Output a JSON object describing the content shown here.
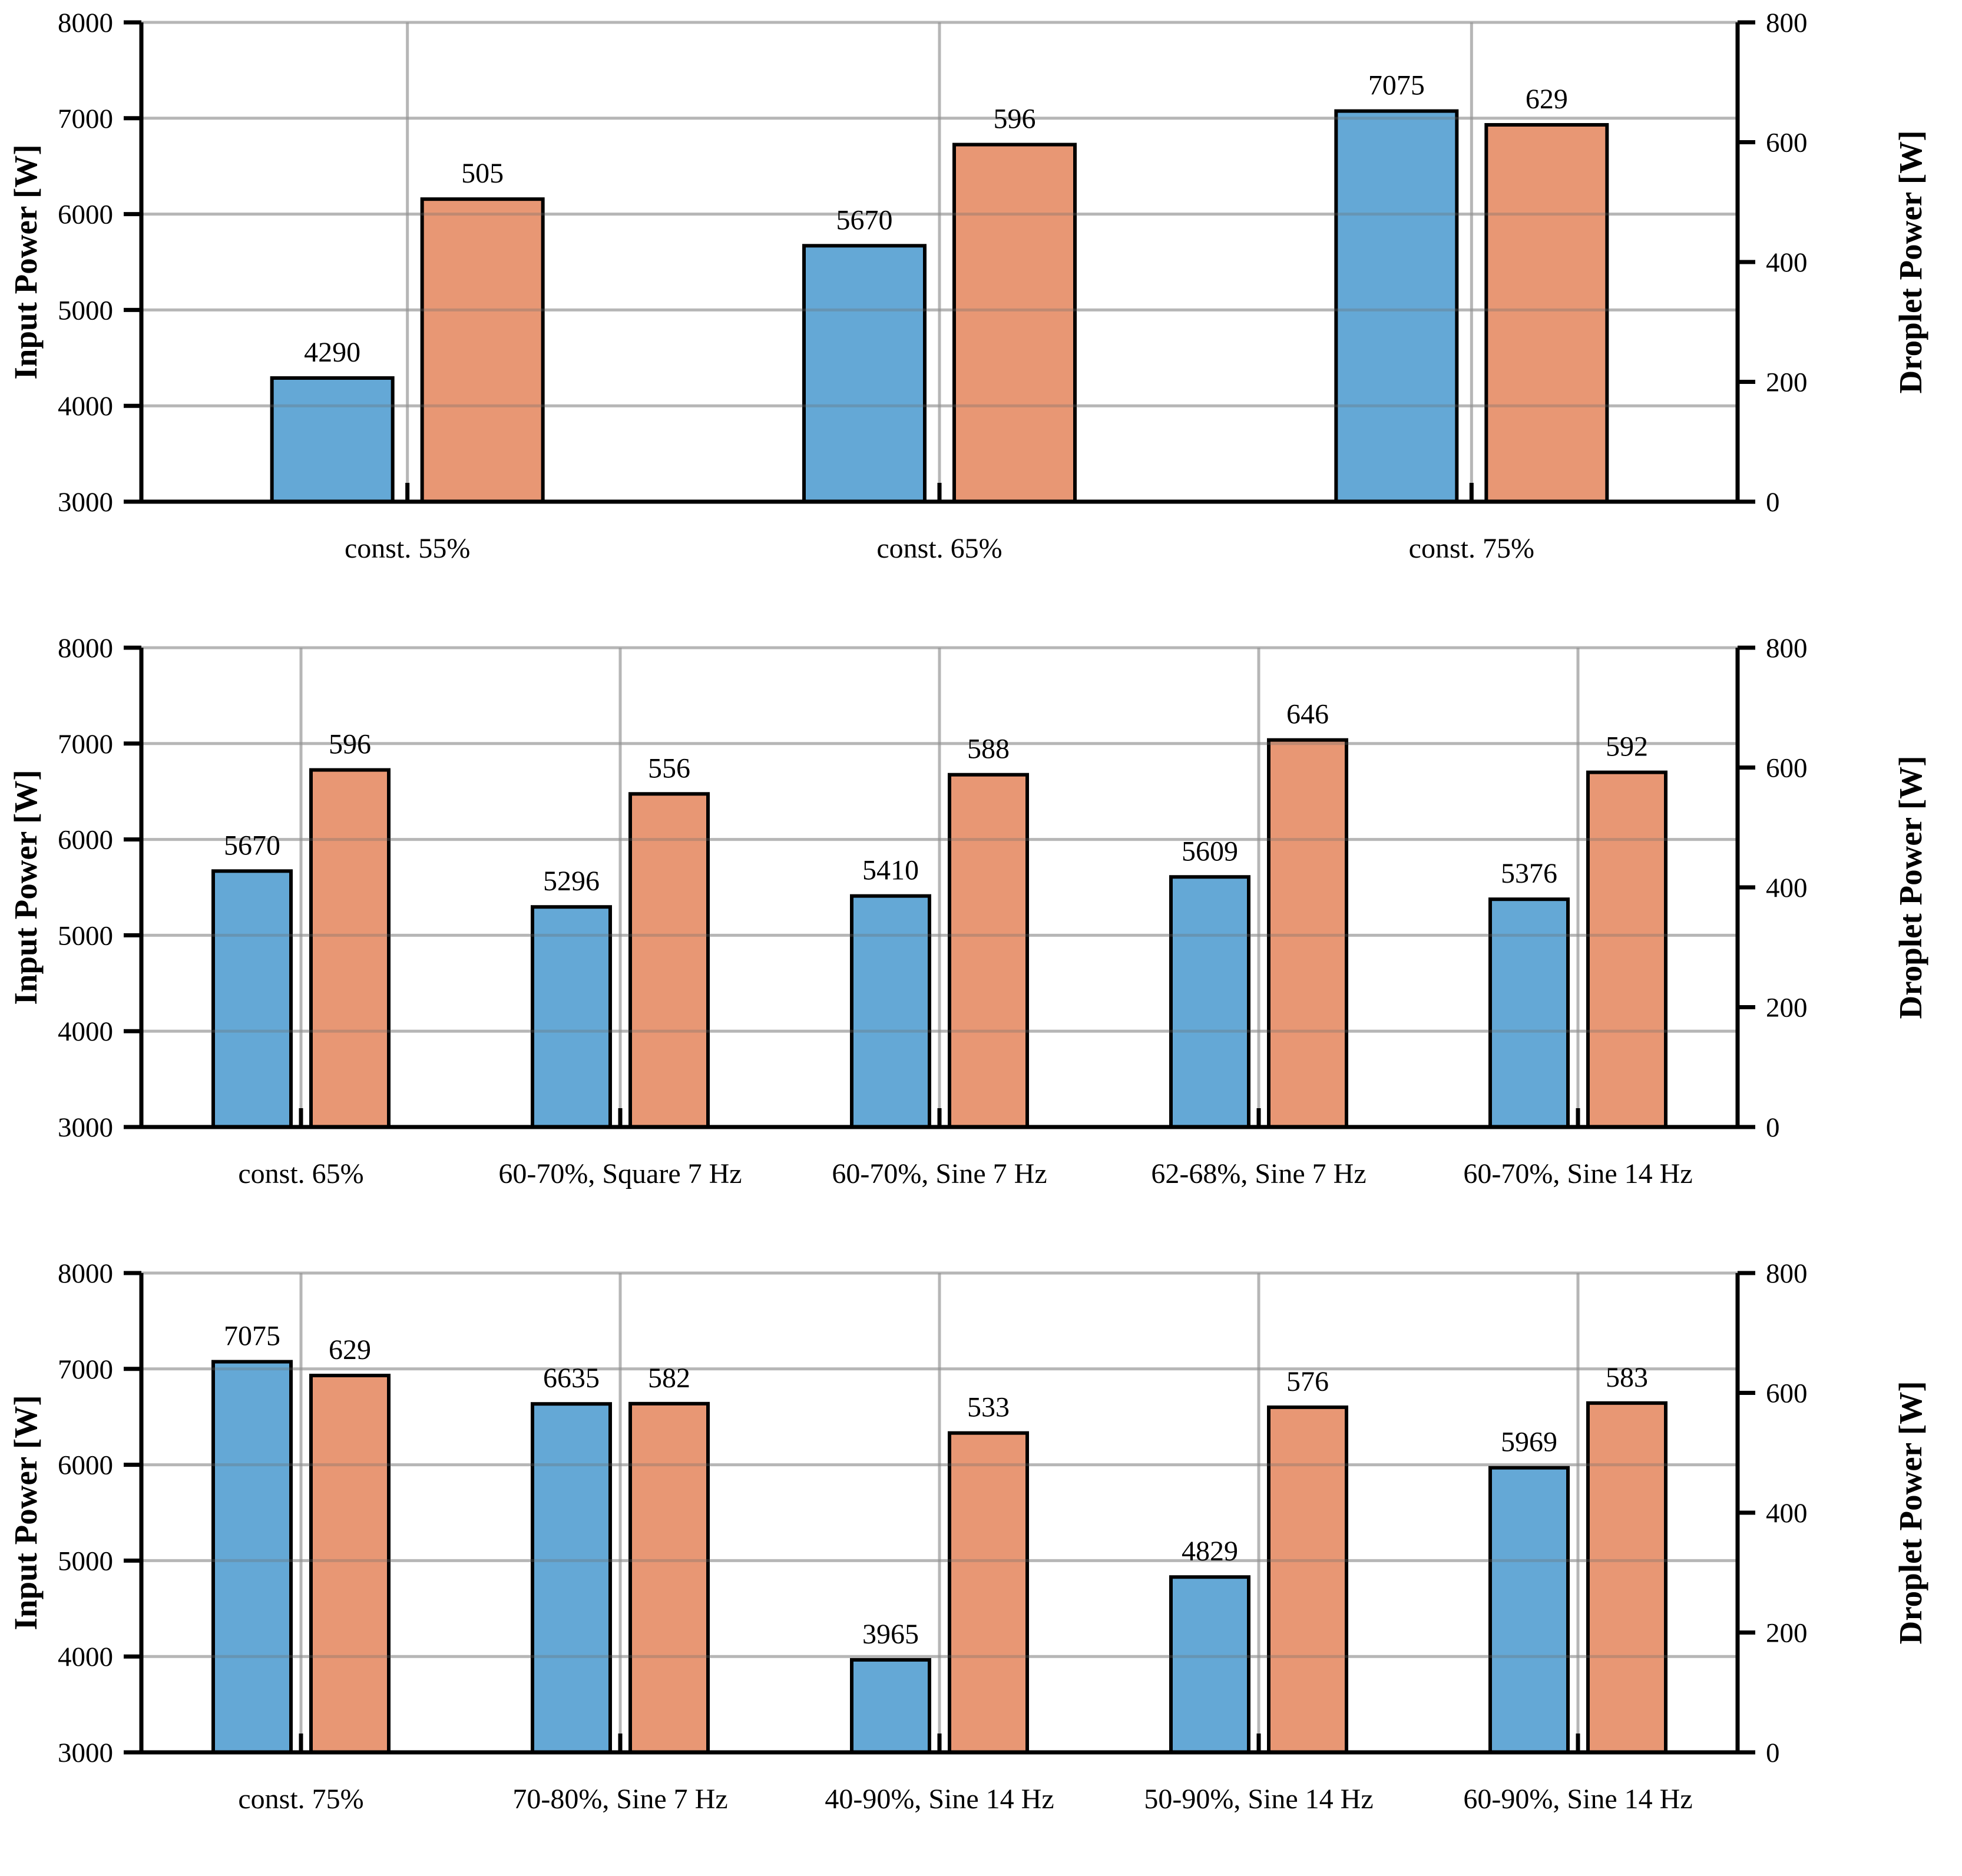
{
  "figure": {
    "background": "#ffffff",
    "num_panels": 3
  },
  "colors": {
    "bar_input_power": "#64a8d6",
    "bar_droplet_power": "#e89774",
    "bar_edge": "#000000",
    "axis_label_input": "#1f77b4",
    "axis_label_droplet": "#d7612f",
    "grid": "#d9d9d9",
    "grid_overlay": "rgba(110,110,110,0.32)",
    "spine": "#000000",
    "tick_text": "#000000"
  },
  "chart_data": [
    {
      "type": "bar",
      "title": "",
      "categories": [
        "const. 55%",
        "const. 65%",
        "const. 75%"
      ],
      "series": [
        {
          "name": "Input Power",
          "axis": "left",
          "color_key": "bar_input_power",
          "values": [
            4290,
            5670,
            7075
          ]
        },
        {
          "name": "Droplet Power",
          "axis": "right",
          "color_key": "bar_droplet_power",
          "values": [
            505,
            596,
            629
          ]
        }
      ],
      "left_axis": {
        "label": "Input Power [W]",
        "min": 3000,
        "max": 8000,
        "ticks": [
          3000,
          4000,
          5000,
          6000,
          7000,
          8000
        ]
      },
      "right_axis": {
        "label": "Droplet Power [W]",
        "min": 0,
        "max": 800,
        "ticks": [
          0,
          200,
          400,
          600,
          800
        ]
      },
      "grid": true,
      "legend_position": "none",
      "bar_value_labels": true
    },
    {
      "type": "bar",
      "title": "",
      "categories": [
        "const. 65%",
        "60-70%, Square 7 Hz",
        "60-70%, Sine 7 Hz",
        "62-68%, Sine 7 Hz",
        "60-70%, Sine 14 Hz"
      ],
      "series": [
        {
          "name": "Input Power",
          "axis": "left",
          "color_key": "bar_input_power",
          "values": [
            5670,
            5296,
            5410,
            5609,
            5376
          ]
        },
        {
          "name": "Droplet Power",
          "axis": "right",
          "color_key": "bar_droplet_power",
          "values": [
            596,
            556,
            588,
            646,
            592
          ]
        }
      ],
      "left_axis": {
        "label": "Input Power [W]",
        "min": 3000,
        "max": 8000,
        "ticks": [
          3000,
          4000,
          5000,
          6000,
          7000,
          8000
        ]
      },
      "right_axis": {
        "label": "Droplet Power [W]",
        "min": 0,
        "max": 800,
        "ticks": [
          0,
          200,
          400,
          600,
          800
        ]
      },
      "grid": true,
      "legend_position": "none",
      "bar_value_labels": true
    },
    {
      "type": "bar",
      "title": "",
      "categories": [
        "const. 75%",
        "70-80%, Sine 7 Hz",
        "40-90%, Sine 14 Hz",
        "50-90%, Sine 14 Hz",
        "60-90%, Sine 14 Hz"
      ],
      "series": [
        {
          "name": "Input Power",
          "axis": "left",
          "color_key": "bar_input_power",
          "values": [
            7075,
            6635,
            3965,
            4829,
            5969
          ]
        },
        {
          "name": "Droplet Power",
          "axis": "right",
          "color_key": "bar_droplet_power",
          "values": [
            629,
            582,
            533,
            576,
            583
          ]
        }
      ],
      "left_axis": {
        "label": "Input Power [W]",
        "min": 3000,
        "max": 8000,
        "ticks": [
          3000,
          4000,
          5000,
          6000,
          7000,
          8000
        ]
      },
      "right_axis": {
        "label": "Droplet Power [W]",
        "min": 0,
        "max": 800,
        "ticks": [
          0,
          200,
          400,
          600,
          800
        ]
      },
      "grid": true,
      "legend_position": "none",
      "bar_value_labels": true
    }
  ]
}
